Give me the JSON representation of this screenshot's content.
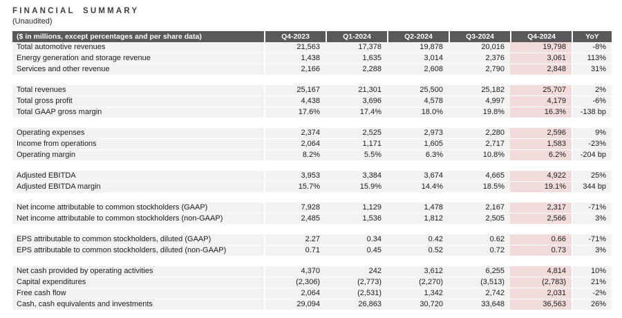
{
  "title": "FINANCIAL SUMMARY",
  "subtitle": "(Unaudited)",
  "table": {
    "label_header": "($ in millions, except percentages and per share data)",
    "columns": [
      "Q4-2023",
      "Q1-2024",
      "Q2-2024",
      "Q3-2024",
      "Q4-2024",
      "YoY"
    ],
    "highlight_column": "Q4-2024",
    "colors": {
      "header_bg": "#595959",
      "header_text": "#ffffff",
      "row_bg": "#f2f2f2",
      "highlight_bg": "#f2dcdb",
      "text": "#1a1a1a"
    },
    "groups": [
      {
        "rows": [
          {
            "label": "Total automotive revenues",
            "values": [
              "21,563",
              "17,378",
              "19,878",
              "20,016",
              "19,798"
            ],
            "yoy": "-8%"
          },
          {
            "label": "Energy generation and storage revenue",
            "values": [
              "1,438",
              "1,635",
              "3,014",
              "2,376",
              "3,061"
            ],
            "yoy": "113%"
          },
          {
            "label": "Services and other revenue",
            "values": [
              "2,166",
              "2,288",
              "2,608",
              "2,790",
              "2,848"
            ],
            "yoy": "31%"
          }
        ]
      },
      {
        "rows": [
          {
            "label": "Total revenues",
            "values": [
              "25,167",
              "21,301",
              "25,500",
              "25,182",
              "25,707"
            ],
            "yoy": "2%"
          },
          {
            "label": "Total gross profit",
            "values": [
              "4,438",
              "3,696",
              "4,578",
              "4,997",
              "4,179"
            ],
            "yoy": "-6%"
          },
          {
            "label": "Total GAAP gross margin",
            "values": [
              "17.6%",
              "17.4%",
              "18.0%",
              "19.8%",
              "16.3%"
            ],
            "yoy": "-138 bp"
          }
        ]
      },
      {
        "rows": [
          {
            "label": "Operating expenses",
            "values": [
              "2,374",
              "2,525",
              "2,973",
              "2,280",
              "2,596"
            ],
            "yoy": "9%"
          },
          {
            "label": "Income from operations",
            "values": [
              "2,064",
              "1,171",
              "1,605",
              "2,717",
              "1,583"
            ],
            "yoy": "-23%"
          },
          {
            "label": "Operating margin",
            "values": [
              "8.2%",
              "5.5%",
              "6.3%",
              "10.8%",
              "6.2%"
            ],
            "yoy": "-204 bp"
          }
        ]
      },
      {
        "rows": [
          {
            "label": "Adjusted EBITDA",
            "values": [
              "3,953",
              "3,384",
              "3,674",
              "4,665",
              "4,922"
            ],
            "yoy": "25%"
          },
          {
            "label": "Adjusted EBITDA margin",
            "values": [
              "15.7%",
              "15.9%",
              "14.4%",
              "18.5%",
              "19.1%"
            ],
            "yoy": "344 bp"
          }
        ]
      },
      {
        "rows": [
          {
            "label": "Net income attributable to common stockholders (GAAP)",
            "values": [
              "7,928",
              "1,129",
              "1,478",
              "2,167",
              "2,317"
            ],
            "yoy": "-71%"
          },
          {
            "label": "Net income attributable to common stockholders (non-GAAP)",
            "values": [
              "2,485",
              "1,536",
              "1,812",
              "2,505",
              "2,566"
            ],
            "yoy": "3%"
          }
        ]
      },
      {
        "rows": [
          {
            "label": "EPS attributable to common stockholders, diluted (GAAP)",
            "values": [
              "2.27",
              "0.34",
              "0.42",
              "0.62",
              "0.66"
            ],
            "yoy": "-71%"
          },
          {
            "label": "EPS attributable to common stockholders, diluted (non-GAAP)",
            "values": [
              "0.71",
              "0.45",
              "0.52",
              "0.72",
              "0.73"
            ],
            "yoy": "3%"
          }
        ]
      },
      {
        "rows": [
          {
            "label": "Net cash provided by operating activities",
            "values": [
              "4,370",
              "242",
              "3,612",
              "6,255",
              "4,814"
            ],
            "yoy": "10%"
          },
          {
            "label": "Capital expenditures",
            "values": [
              "(2,306)",
              "(2,773)",
              "(2,270)",
              "(3,513)",
              "(2,783)"
            ],
            "yoy": "21%"
          },
          {
            "label": "Free cash flow",
            "values": [
              "2,064",
              "(2,531)",
              "1,342",
              "2,742",
              "2,031"
            ],
            "yoy": "-2%"
          },
          {
            "label": "Cash, cash equivalents and investments",
            "values": [
              "29,094",
              "26,863",
              "30,720",
              "33,648",
              "36,563"
            ],
            "yoy": "26%"
          }
        ]
      }
    ]
  }
}
